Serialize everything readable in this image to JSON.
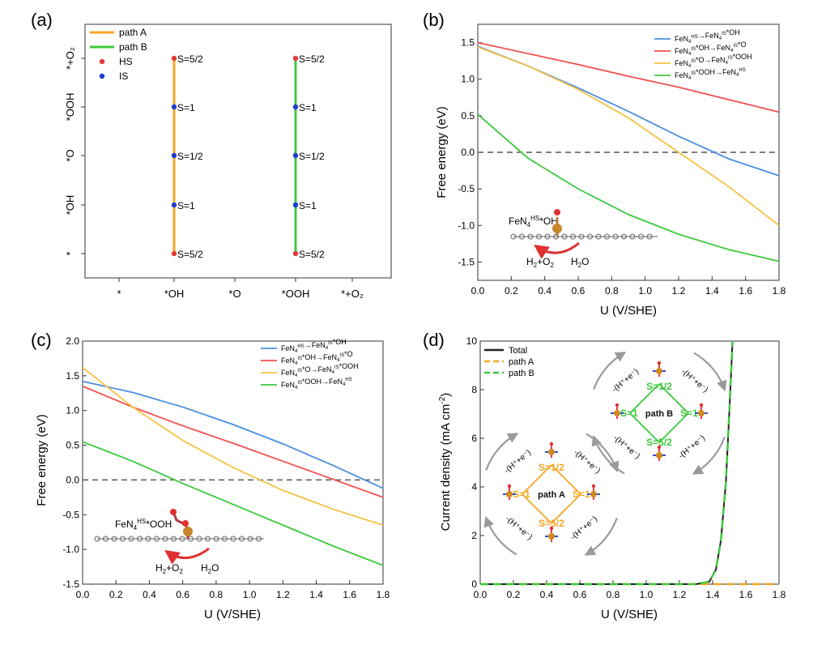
{
  "colors": {
    "blue": "#4a90e2",
    "red": "#f25050",
    "orange": "#f5c242",
    "green": "#3ec83e",
    "dark": "#222222",
    "path_a": "#f5a623",
    "path_b": "#3ec83e"
  },
  "panel_labels": [
    "(a)",
    "(b)",
    "(c)",
    "(d)"
  ],
  "chart_data": [
    {
      "panel": "(a)",
      "type": "scatter",
      "x_categories": [
        "*",
        "*OH",
        "*O",
        "*OOH",
        "*+O2"
      ],
      "y_categories": [
        "*",
        "*OH",
        "*O",
        "*OOH",
        "*+O2"
      ],
      "legend": [
        {
          "name": "path A",
          "kind": "line",
          "color": "#f5a623"
        },
        {
          "name": "path B",
          "kind": "line",
          "color": "#3ec83e"
        },
        {
          "name": "HS",
          "kind": "dot",
          "color": "#e53935"
        },
        {
          "name": "IS",
          "kind": "dot",
          "color": "#1e3cd6"
        }
      ],
      "series": [
        {
          "name": "path A",
          "x": "*OH",
          "points": [
            {
              "y": "*+O2",
              "state": "HS",
              "label": "S=5/2"
            },
            {
              "y": "*OOH",
              "state": "IS",
              "label": "S=1"
            },
            {
              "y": "*O",
              "state": "IS",
              "label": "S=1/2"
            },
            {
              "y": "*OH",
              "state": "IS",
              "label": "S=1"
            },
            {
              "y": "*",
              "state": "HS",
              "label": "S=5/2"
            }
          ]
        },
        {
          "name": "path B",
          "x": "*OOH",
          "points": [
            {
              "y": "*+O2",
              "state": "HS",
              "label": "S=5/2"
            },
            {
              "y": "*OOH",
              "state": "IS",
              "label": "S=1"
            },
            {
              "y": "*O",
              "state": "IS",
              "label": "S=1/2"
            },
            {
              "y": "*OH",
              "state": "IS",
              "label": "S=1"
            },
            {
              "y": "*",
              "state": "HS",
              "label": "S=5/2"
            }
          ]
        }
      ]
    },
    {
      "panel": "(b)",
      "type": "line",
      "xlabel": "U (V/SHE)",
      "ylabel": "Free energy (eV)",
      "xlim": [
        0,
        1.8
      ],
      "ylim": [
        -1.75,
        1.75
      ],
      "xticks": [
        "0.0",
        "0.2",
        "0.4",
        "0.6",
        "0.8",
        "1.0",
        "1.2",
        "1.4",
        "1.6",
        "1.8"
      ],
      "yticks": [
        "-1.5",
        "-1.0",
        "-0.5",
        "0.0",
        "0.5",
        "1.0",
        "1.5"
      ],
      "legend_position": "top-right",
      "inset_label": "FeN4HS*OH",
      "inset_products": [
        "H2+O2",
        "H2O"
      ],
      "series": [
        {
          "name": "FeN4HS→FeN4IS*OH",
          "color": "#4a90e2",
          "x": [
            0,
            0.3,
            0.6,
            0.9,
            1.2,
            1.5,
            1.8
          ],
          "y": [
            1.45,
            1.18,
            0.88,
            0.56,
            0.22,
            -0.09,
            -0.32
          ]
        },
        {
          "name": "FeN4IS*OH→FeN4IS*O",
          "color": "#f25050",
          "x": [
            0,
            0.3,
            0.6,
            0.9,
            1.2,
            1.5,
            1.8
          ],
          "y": [
            1.5,
            1.35,
            1.2,
            1.04,
            0.89,
            0.72,
            0.55
          ]
        },
        {
          "name": "FeN4IS*O→FeN4IS*OOH",
          "color": "#f5c242",
          "x": [
            0,
            0.3,
            0.6,
            0.9,
            1.2,
            1.5,
            1.8
          ],
          "y": [
            1.44,
            1.18,
            0.86,
            0.47,
            0.0,
            -0.47,
            -1.0
          ]
        },
        {
          "name": "FeN4IS*OOH→FeN4HS",
          "color": "#3ec83e",
          "x": [
            0,
            0.3,
            0.6,
            0.9,
            1.2,
            1.5,
            1.8
          ],
          "y": [
            0.52,
            -0.08,
            -0.5,
            -0.85,
            -1.12,
            -1.33,
            -1.49
          ]
        }
      ]
    },
    {
      "panel": "(c)",
      "type": "line",
      "xlabel": "U (V/SHE)",
      "ylabel": "Free energy (eV)",
      "xlim": [
        0,
        1.8
      ],
      "ylim": [
        -1.5,
        2.0
      ],
      "xticks": [
        "0.0",
        "0.2",
        "0.4",
        "0.6",
        "0.8",
        "1.0",
        "1.2",
        "1.4",
        "1.6",
        "1.8"
      ],
      "yticks": [
        "-1.5",
        "-1.0",
        "-0.5",
        "0.0",
        "0.5",
        "1.0",
        "1.5",
        "2.0"
      ],
      "legend_position": "top-right",
      "inset_label": "FeN4HS*OOH",
      "inset_products": [
        "H2+O2",
        "H2O"
      ],
      "series": [
        {
          "name": "FeN4HS→FeN4IS*OH",
          "color": "#4a90e2",
          "x": [
            0,
            0.3,
            0.6,
            0.9,
            1.2,
            1.5,
            1.8
          ],
          "y": [
            1.42,
            1.26,
            1.05,
            0.8,
            0.52,
            0.21,
            -0.12
          ]
        },
        {
          "name": "FeN4IS*OH→FeN4IS*O",
          "color": "#f25050",
          "x": [
            0,
            0.3,
            0.6,
            0.9,
            1.2,
            1.5,
            1.8
          ],
          "y": [
            1.35,
            1.05,
            0.78,
            0.53,
            0.27,
            0.01,
            -0.25
          ]
        },
        {
          "name": "FeN4IS*O→FeN4IS*OOH",
          "color": "#f5c242",
          "x": [
            0,
            0.3,
            0.6,
            0.9,
            1.2,
            1.5,
            1.8
          ],
          "y": [
            1.62,
            1.05,
            0.57,
            0.18,
            -0.15,
            -0.42,
            -0.65
          ]
        },
        {
          "name": "FeN4IS*OOH→FeN4HS",
          "color": "#3ec83e",
          "x": [
            0,
            0.3,
            0.6,
            0.9,
            1.2,
            1.5,
            1.8
          ],
          "y": [
            0.55,
            0.27,
            -0.05,
            -0.35,
            -0.65,
            -0.95,
            -1.23
          ]
        }
      ]
    },
    {
      "panel": "(d)",
      "type": "line",
      "xlabel": "U (V/SHE)",
      "ylabel": "Current density (mA cm-2)",
      "xlim": [
        0,
        1.8
      ],
      "ylim": [
        0,
        10
      ],
      "xticks": [
        "0.0",
        "0.2",
        "0.4",
        "0.6",
        "0.8",
        "1.0",
        "1.2",
        "1.4",
        "1.6",
        "1.8"
      ],
      "yticks": [
        "0",
        "2",
        "4",
        "6",
        "8",
        "10"
      ],
      "legend_position": "top-left",
      "series": [
        {
          "name": "Total",
          "color": "#222222",
          "dash": false,
          "x": [
            0,
            1.3,
            1.38,
            1.42,
            1.45,
            1.48,
            1.5,
            1.52
          ],
          "y": [
            0,
            0,
            0.1,
            0.6,
            1.8,
            4.2,
            7.0,
            10
          ]
        },
        {
          "name": "path A",
          "color": "#f5a623",
          "dash": true,
          "x": [
            0,
            1.8
          ],
          "y": [
            0,
            0
          ]
        },
        {
          "name": "path B",
          "color": "#3ec83e",
          "dash": true,
          "x": [
            0,
            1.3,
            1.38,
            1.42,
            1.45,
            1.48,
            1.5,
            1.52
          ],
          "y": [
            0,
            0,
            0.1,
            0.6,
            1.8,
            4.2,
            7.0,
            10
          ]
        }
      ],
      "cycles": [
        {
          "name": "path A",
          "spins": [
            "S=1/2",
            "S=1",
            "S=1",
            "S=5/2"
          ],
          "color": "#f5a623",
          "steps": "-(H⁺+e⁻)"
        },
        {
          "name": "path B",
          "spins": [
            "S=1/2",
            "S=1",
            "S=1",
            "S=5/2"
          ],
          "color": "#3ec83e",
          "steps": "-(H⁺+e⁻)"
        }
      ]
    }
  ]
}
